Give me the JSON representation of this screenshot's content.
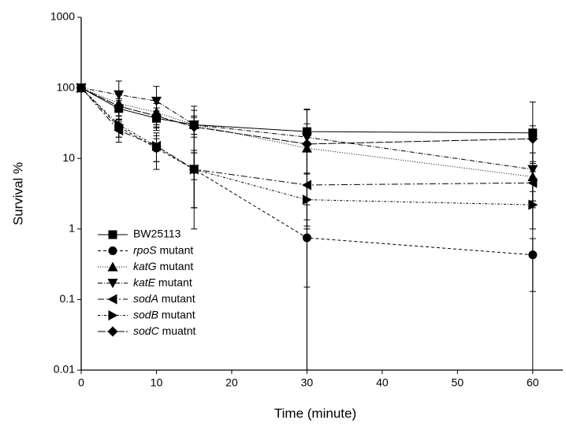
{
  "chart_data": {
    "type": "line",
    "x_label": "Time (minute)",
    "y_label": "Survival %",
    "x": [
      0,
      5,
      10,
      15,
      30,
      60
    ],
    "xlim": [
      0,
      64
    ],
    "xticks": [
      0,
      10,
      20,
      30,
      40,
      50,
      60
    ],
    "ylim": [
      0.01,
      1000
    ],
    "yticks": [
      0.01,
      0.1,
      1,
      10,
      100,
      1000
    ],
    "log_y": true,
    "legend": "lower left",
    "series": [
      {
        "name": "BW25113",
        "color": "#000000",
        "marker": "square",
        "dash": "none",
        "values": [
          100,
          51,
          37,
          30,
          24,
          23
        ],
        "errors": [
          0,
          15,
          10,
          8,
          25,
          40
        ]
      },
      {
        "name": "rpoS mutant",
        "color": "#000000",
        "marker": "circle",
        "dash": "4 3",
        "values": [
          100,
          28,
          14,
          7,
          0.75,
          0.43
        ],
        "errors": [
          0,
          8,
          5,
          5,
          0.6,
          0.3
        ]
      },
      {
        "name": "katG mutant",
        "color": "#000000",
        "marker": "triangle-up",
        "dash": "1 2",
        "values": [
          100,
          60,
          45,
          30,
          14,
          5.5
        ],
        "errors": [
          0,
          20,
          15,
          10,
          8,
          3
        ]
      },
      {
        "name": "katE mutant",
        "color": "#000000",
        "marker": "triangle-down",
        "dash": "6 2 1 2",
        "values": [
          100,
          80,
          65,
          30,
          20,
          7
        ],
        "errors": [
          0,
          45,
          40,
          25,
          30,
          5
        ]
      },
      {
        "name": "sodA mutant",
        "color": "#000000",
        "marker": "triangle-left",
        "dash": "8 3 2 3",
        "values": [
          100,
          25,
          15,
          7,
          4.2,
          4.5
        ],
        "errors": [
          0,
          8,
          6,
          5,
          2,
          2
        ]
      },
      {
        "name": "sodB mutant",
        "color": "#000000",
        "marker": "triangle-right",
        "dash": "3 2 1 2",
        "values": [
          100,
          30,
          15,
          7,
          2.6,
          2.2
        ],
        "errors": [
          0,
          10,
          8,
          6,
          1.5,
          1.2
        ]
      },
      {
        "name": "sodC muatnt",
        "color": "#000000",
        "marker": "diamond",
        "dash": "10 2",
        "values": [
          100,
          55,
          40,
          28,
          16,
          19
        ],
        "errors": [
          0,
          15,
          12,
          20,
          15,
          10
        ]
      }
    ]
  }
}
